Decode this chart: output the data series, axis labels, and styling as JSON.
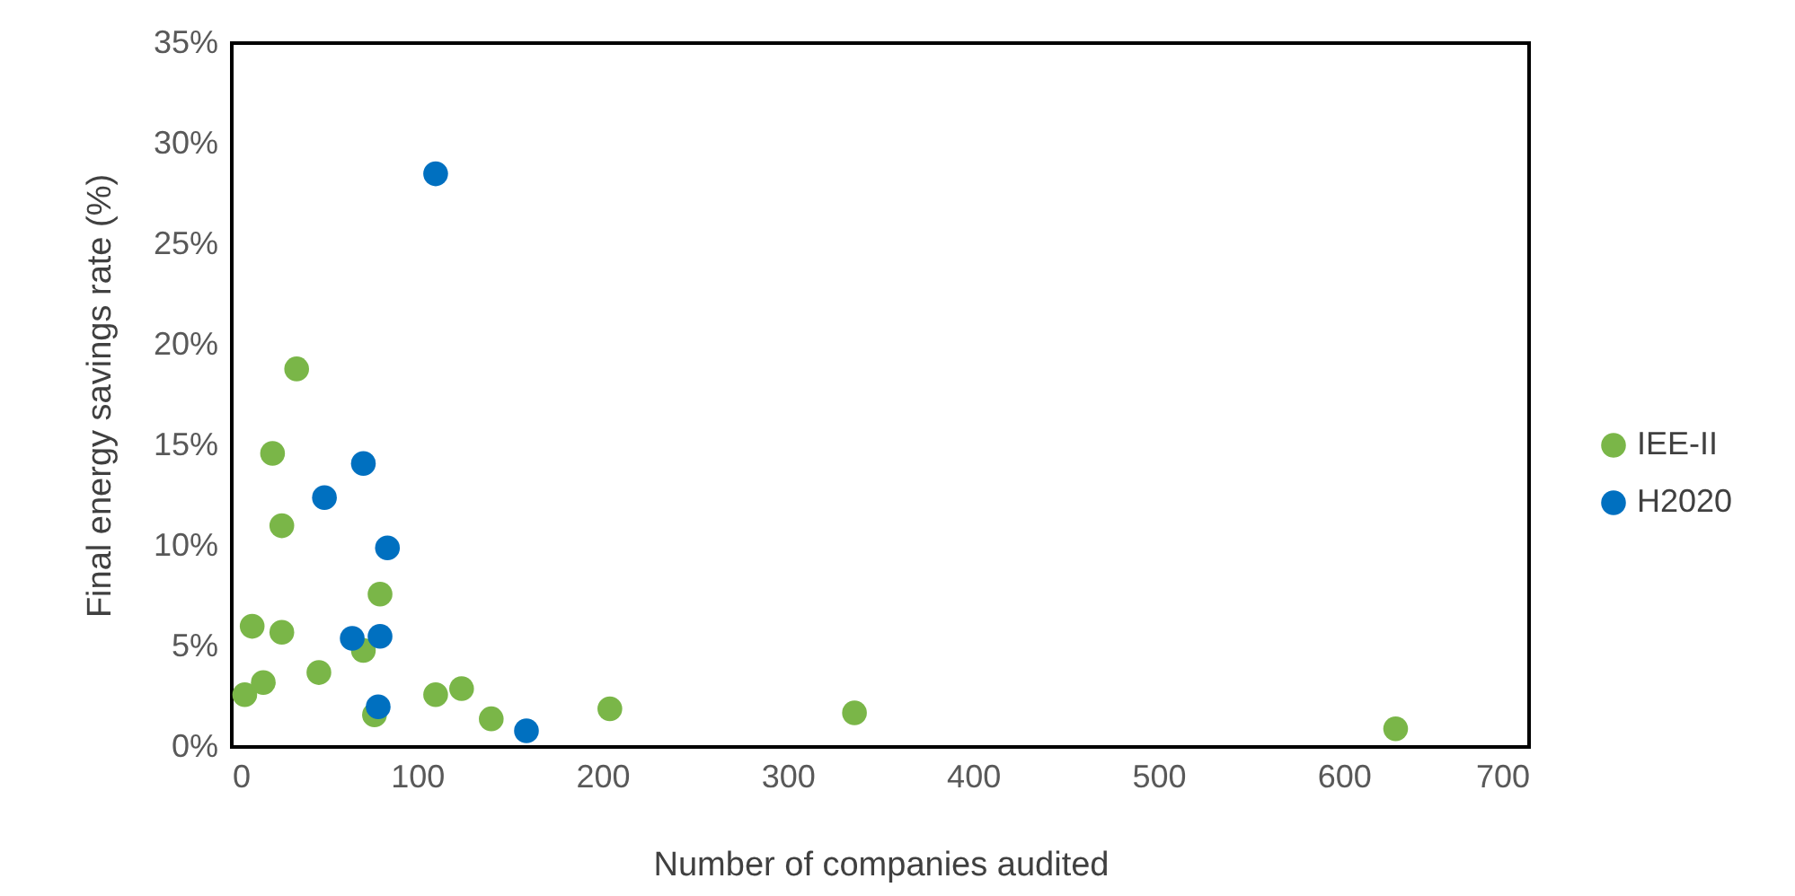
{
  "chart_data": {
    "type": "scatter",
    "xlabel": "Number  of companies audited",
    "ylabel": "Final energy savings rate (%)",
    "xlim": [
      0,
      700
    ],
    "xticks": [
      0,
      100,
      200,
      300,
      400,
      500,
      600,
      700
    ],
    "ylim": [
      0,
      35
    ],
    "yticks": [
      {
        "value": 0,
        "label": "0%"
      },
      {
        "value": 5,
        "label": "5%"
      },
      {
        "value": 10,
        "label": "10%"
      },
      {
        "value": 15,
        "label": "15%"
      },
      {
        "value": 20,
        "label": "20%"
      },
      {
        "value": 25,
        "label": "25%"
      },
      {
        "value": 30,
        "label": "30%"
      },
      {
        "value": 35,
        "label": "35%"
      }
    ],
    "grid": false,
    "legend": "right",
    "marker": "circle",
    "series": [
      {
        "name": "IEE-II",
        "color": "#7ab648",
        "x": [
          7,
          17,
          11,
          27,
          47,
          71,
          77,
          80,
          27,
          22,
          35,
          110,
          124,
          140,
          204,
          336,
          628
        ],
        "values": [
          2.6,
          3.2,
          6.0,
          5.7,
          3.7,
          4.8,
          1.6,
          7.6,
          11.0,
          14.6,
          18.8,
          2.6,
          2.9,
          1.4,
          1.9,
          1.7,
          0.9
        ]
      },
      {
        "name": "H2020",
        "color": "#0070c0",
        "x": [
          110,
          71,
          50,
          84,
          65,
          80,
          79,
          159
        ],
        "values": [
          28.5,
          14.1,
          12.4,
          9.9,
          5.4,
          5.5,
          2.0,
          0.8
        ]
      }
    ]
  }
}
